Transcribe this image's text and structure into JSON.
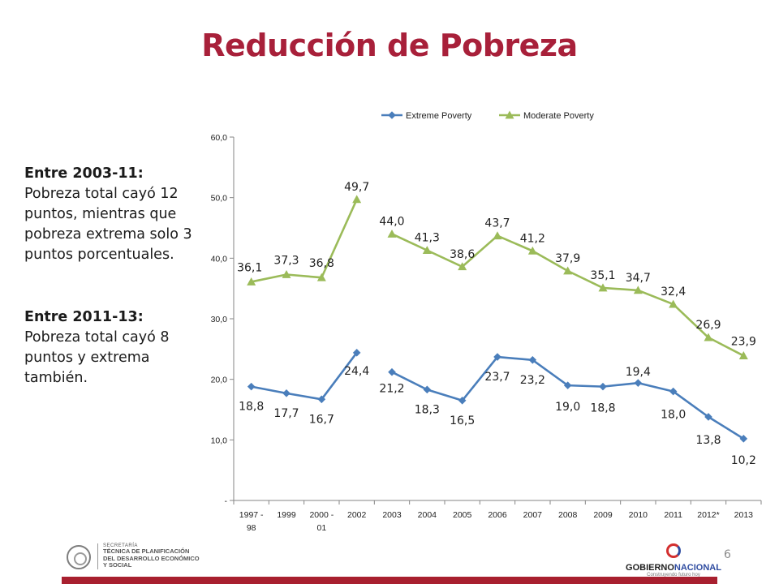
{
  "title": "Reducción de Pobreza",
  "notes": {
    "block1_head": "Entre 2003-11:",
    "block1_text": "Pobreza total cayó 12 puntos, mientras que pobreza extrema solo 3 puntos porcentuales.",
    "block2_head": "Entre 2011-13:",
    "block2_text": "Pobreza total cayó 8 puntos y extrema también."
  },
  "chart_data": {
    "type": "line",
    "categories": [
      "1997 - 98",
      "1999",
      "2000 - 01",
      "2002",
      "2003",
      "2004",
      "2005",
      "2006",
      "2007",
      "2008",
      "2009",
      "2010",
      "2011",
      "2012*",
      "2013"
    ],
    "category_lines": [
      [
        "1997 -",
        "98"
      ],
      [
        "1999"
      ],
      [
        "2000 -",
        "01"
      ],
      [
        "2002"
      ],
      [
        "2003"
      ],
      [
        "2004"
      ],
      [
        "2005"
      ],
      [
        "2006"
      ],
      [
        "2007"
      ],
      [
        "2008"
      ],
      [
        "2009"
      ],
      [
        "2010"
      ],
      [
        "2011"
      ],
      [
        "2012*"
      ],
      [
        "2013"
      ]
    ],
    "series": [
      {
        "name": "Extreme Poverty",
        "color": "#4a7ebb",
        "marker": "diamond",
        "values": [
          18.8,
          17.7,
          16.7,
          24.4,
          21.2,
          18.3,
          16.5,
          23.7,
          23.2,
          19.0,
          18.8,
          19.4,
          18.0,
          13.8,
          10.2
        ],
        "labels": [
          "18,8",
          "17,7",
          "16,7",
          "24,4",
          "21,2",
          "18,3",
          "16,5",
          "23,7",
          "23,2",
          "19,0",
          "18,8",
          "19,4",
          "18,0",
          "13,8",
          "10,2"
        ],
        "segments": [
          [
            0,
            3
          ],
          [
            4,
            14
          ]
        ]
      },
      {
        "name": "Moderate Poverty",
        "color": "#9bbb59",
        "marker": "triangle",
        "values": [
          36.1,
          37.3,
          36.8,
          49.7,
          44.0,
          41.3,
          38.6,
          43.7,
          41.2,
          37.9,
          35.1,
          34.7,
          32.4,
          26.9,
          23.9
        ],
        "labels": [
          "36,1",
          "37,3",
          "36,8",
          "49,7",
          "44,0",
          "41,3",
          "38,6",
          "43,7",
          "41,2",
          "37,9",
          "35,1",
          "34,7",
          "32,4",
          "26,9",
          "23,9"
        ],
        "segments": [
          [
            0,
            3
          ],
          [
            4,
            14
          ]
        ]
      }
    ],
    "ylim": [
      0,
      60
    ],
    "yticks": [
      0,
      10,
      20,
      30,
      40,
      50,
      60
    ],
    "ytick_labels": [
      "-",
      "10,0",
      "20,0",
      "30,0",
      "40,0",
      "50,0",
      "60,0"
    ],
    "grid": false,
    "legend": "top"
  },
  "footer": {
    "left_logo_line1": "SECRETARÍA",
    "left_logo_line2": "TÉCNICA DE PLANIFICACIÓN",
    "left_logo_line3": "DEL DESARROLLO ECONÓMICO",
    "left_logo_line4": "Y SOCIAL",
    "right_logo_a": "GOBIERNO",
    "right_logo_b": "NACIONAL",
    "right_logo_sub": "Construyendo futuro hoy",
    "page_number": "6",
    "bar_color": "#a8202f"
  }
}
